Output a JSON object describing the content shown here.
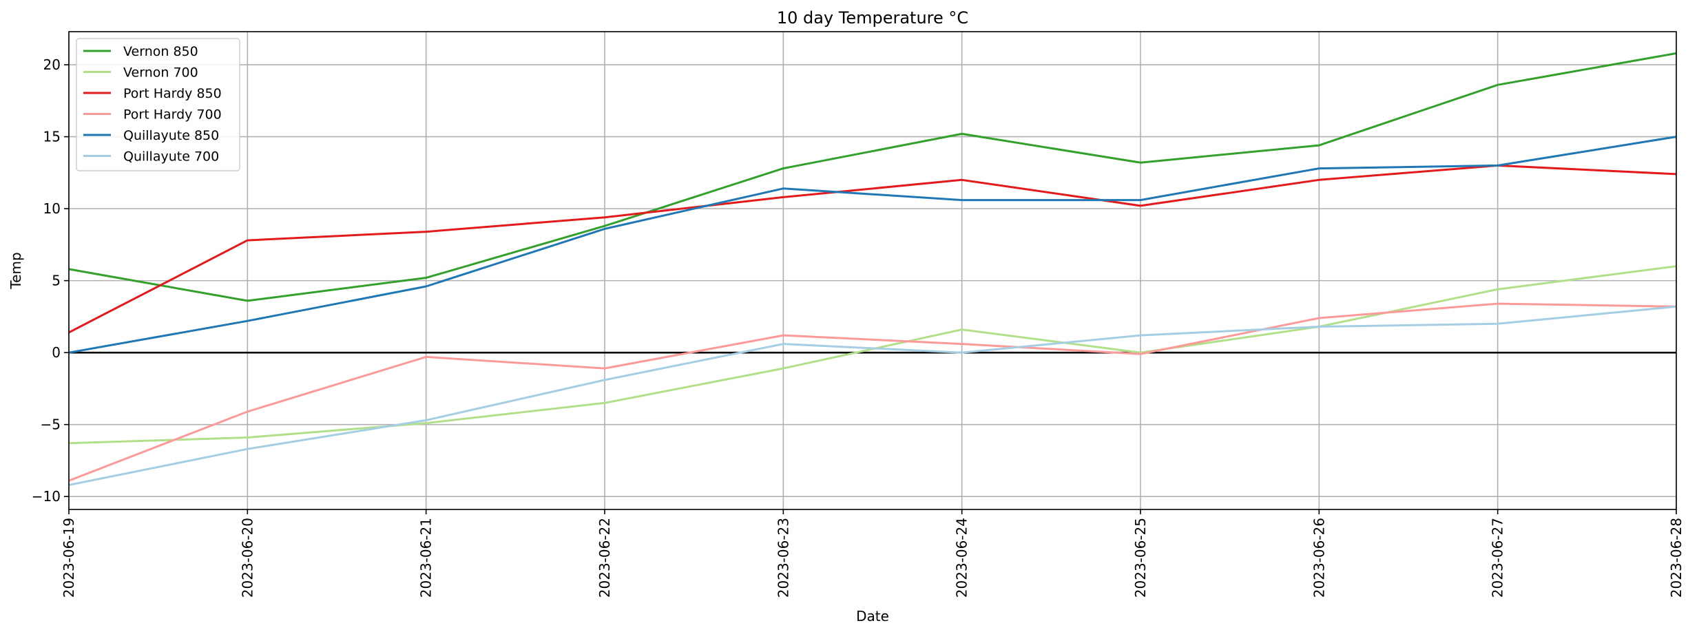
{
  "chart_data": {
    "type": "line",
    "title": "10 day Temperature °C",
    "xlabel": "Date",
    "ylabel": "Temp",
    "x": [
      "2023-06-19",
      "2023-06-20",
      "2023-06-21",
      "2023-06-22",
      "2023-06-23",
      "2023-06-24",
      "2023-06-25",
      "2023-06-26",
      "2023-06-27",
      "2023-06-28"
    ],
    "ylim": [
      -10.9,
      22.3
    ],
    "yticks": [
      -10,
      -5,
      0,
      5,
      10,
      15,
      20
    ],
    "grid": true,
    "zero_line": true,
    "legend_position": "top-left",
    "series": [
      {
        "name": "Vernon 850",
        "color": "#33a02c",
        "values": [
          5.8,
          3.6,
          5.2,
          8.8,
          12.8,
          15.2,
          13.2,
          14.4,
          18.6,
          20.8
        ]
      },
      {
        "name": "Vernon 700",
        "color": "#b2df8a",
        "values": [
          -6.3,
          -5.9,
          -4.9,
          -3.5,
          -1.1,
          1.6,
          0.0,
          1.8,
          4.4,
          6.0
        ]
      },
      {
        "name": "Port Hardy 850",
        "color": "#e31a1c",
        "values": [
          1.4,
          7.8,
          8.4,
          9.4,
          10.8,
          12.0,
          10.2,
          12.0,
          13.0,
          12.4
        ]
      },
      {
        "name": "Port Hardy 700",
        "color": "#fb9a99",
        "values": [
          -8.9,
          -4.1,
          -0.3,
          -1.1,
          1.2,
          0.6,
          -0.1,
          2.4,
          3.4,
          3.2
        ]
      },
      {
        "name": "Quillayute 850",
        "color": "#1f78b4",
        "values": [
          0.0,
          2.2,
          4.6,
          8.6,
          11.4,
          10.6,
          10.6,
          12.8,
          13.0,
          15.0
        ]
      },
      {
        "name": "Quillayute 700",
        "color": "#a6cee3",
        "values": [
          -9.2,
          -6.7,
          -4.7,
          -1.9,
          0.6,
          0.0,
          1.2,
          1.8,
          2.0,
          3.2
        ]
      }
    ]
  }
}
